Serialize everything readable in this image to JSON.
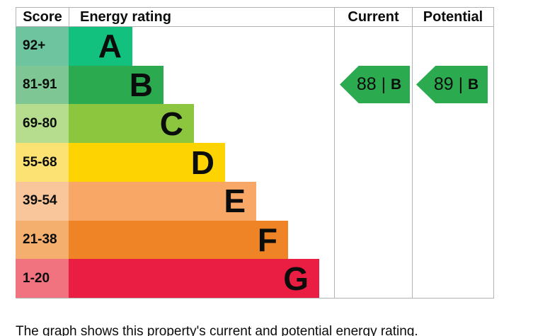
{
  "table": {
    "headers": {
      "score": "Score",
      "energy_rating": "Energy rating",
      "current": "Current",
      "potential": "Potential"
    }
  },
  "chart_data": {
    "type": "bar",
    "orientation": "horizontal",
    "bands": [
      {
        "score": "92+",
        "letter": "A",
        "bar_color": "#12c17d",
        "score_color": "#6fc4a0"
      },
      {
        "score": "81-91",
        "letter": "B",
        "bar_color": "#2caa4f",
        "score_color": "#7ec795"
      },
      {
        "score": "69-80",
        "letter": "C",
        "bar_color": "#8cc63f",
        "score_color": "#b6dd8e"
      },
      {
        "score": "55-68",
        "letter": "D",
        "bar_color": "#fdd402",
        "score_color": "#fbe273"
      },
      {
        "score": "39-54",
        "letter": "E",
        "bar_color": "#f9a766",
        "score_color": "#f9c69c"
      },
      {
        "score": "21-38",
        "letter": "F",
        "bar_color": "#ee8425",
        "score_color": "#f4ae6e"
      },
      {
        "score": "1-20",
        "letter": "G",
        "bar_color": "#ea1d42",
        "score_color": "#f1737f"
      }
    ],
    "current": {
      "value": "88",
      "divider": "|",
      "band": "B",
      "arrow_color": "#2caa4f",
      "arrow_row": "B"
    },
    "potential": {
      "value": "89",
      "divider": "|",
      "band": "B",
      "arrow_color": "#2caa4f",
      "arrow_row": "B"
    },
    "legend_position": "none",
    "grid": false,
    "border_color": "#b1b4b6"
  },
  "footer": {
    "caption": "The graph shows this property's current and potential energy rating."
  }
}
